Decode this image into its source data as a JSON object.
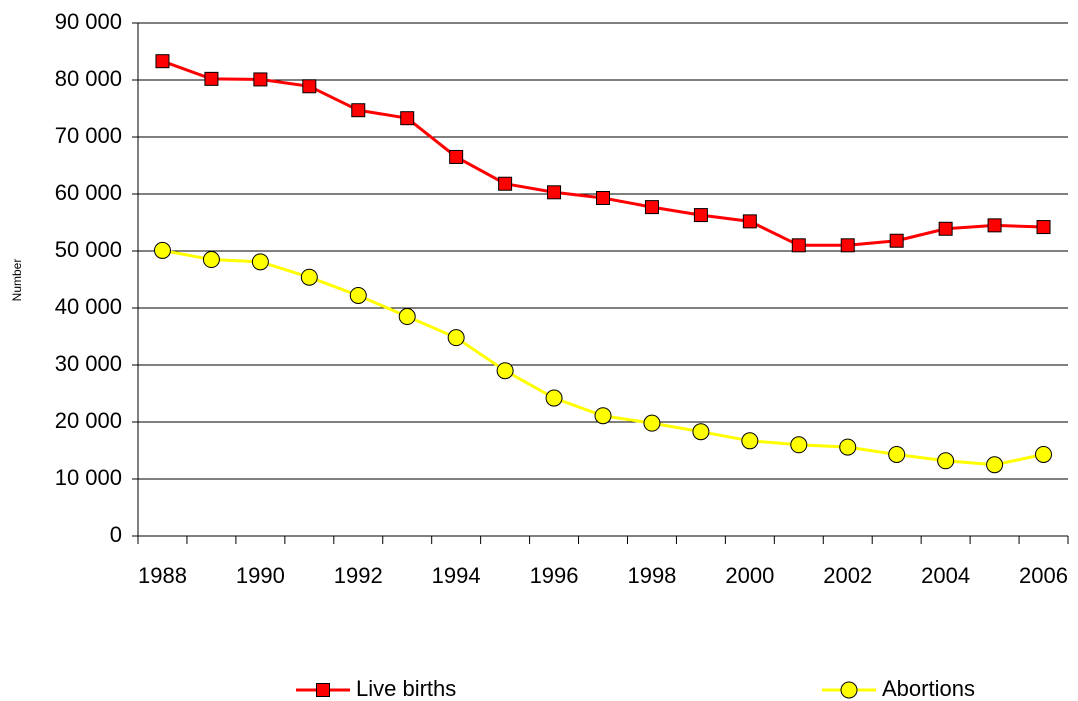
{
  "chart_data": {
    "type": "line",
    "y_label": "Number",
    "categories": [
      "1988",
      null,
      "1990",
      null,
      "1992",
      null,
      "1994",
      null,
      "1996",
      null,
      "1998",
      null,
      "2000",
      null,
      "2002",
      null,
      "2004",
      null,
      "2006"
    ],
    "series": [
      {
        "name": "Live births",
        "color": "#ff0000",
        "marker": "square",
        "values": [
          83300,
          80200,
          80100,
          78900,
          74700,
          73300,
          66500,
          61800,
          60300,
          59300,
          57700,
          56300,
          55200,
          51000,
          51000,
          51800,
          53900,
          54500,
          54200
        ]
      },
      {
        "name": "Abortions",
        "color": "#ffff00",
        "marker": "circle",
        "values": [
          50100,
          48500,
          48100,
          45400,
          42200,
          38500,
          34800,
          29000,
          24200,
          21100,
          19800,
          18300,
          16700,
          16000,
          15600,
          14300,
          13200,
          12500,
          14300
        ]
      }
    ],
    "ylim": [
      0,
      90000
    ],
    "yticks": [
      0,
      {
        "value": 10000,
        "label": "10 000"
      },
      {
        "value": 20000,
        "label": "20 000"
      },
      {
        "value": 30000,
        "label": "30 000"
      },
      {
        "value": 40000,
        "label": "40 000"
      },
      {
        "value": 50000,
        "label": "50 000"
      },
      {
        "value": 60000,
        "label": "60 000"
      },
      {
        "value": 70000,
        "label": "70 000"
      },
      {
        "value": 80000,
        "label": "80 000"
      },
      {
        "value": 90000,
        "label": "90 000"
      }
    ],
    "grid": true,
    "legend": "bottom"
  }
}
